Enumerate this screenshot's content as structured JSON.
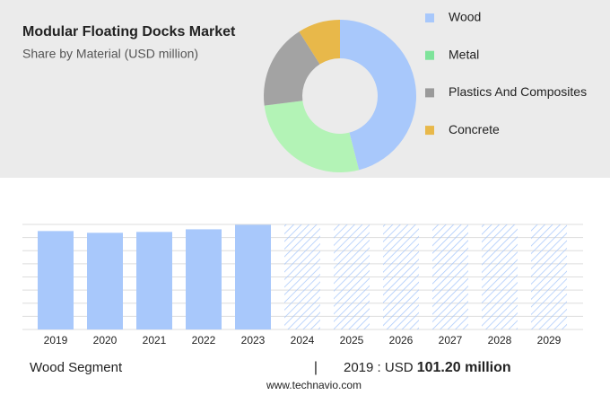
{
  "chart_data": [
    {
      "type": "pie",
      "title": "Modular Floating Docks Market",
      "subtitle": "Share by Material (USD million)",
      "categories": [
        "Wood",
        "Metal",
        "Plastics And Composites",
        "Concrete"
      ],
      "values": [
        46,
        27,
        18,
        9
      ],
      "colors": [
        "#a8c8fb",
        "#b3f3b6",
        "#a3a3a3",
        "#e8b84a"
      ],
      "legend_colors": [
        "#a8c8fb",
        "#7ee39a",
        "#9a9a9a",
        "#e8b84a"
      ]
    },
    {
      "type": "bar",
      "categories": [
        "2019",
        "2020",
        "2021",
        "2022",
        "2023",
        "2024",
        "2025",
        "2026",
        "2027",
        "2028",
        "2029"
      ],
      "values": [
        101.2,
        99.4,
        100.3,
        103.0,
        107.6,
        null,
        null,
        null,
        null,
        null,
        null
      ],
      "color": "#a8c8fb",
      "ylim": [
        0,
        108
      ],
      "grid": true
    }
  ],
  "footer": {
    "segment": "Wood Segment",
    "divider": "|",
    "prefix": "2019 : USD",
    "highlight": "101.20 million",
    "source": "www.technavio.com"
  }
}
